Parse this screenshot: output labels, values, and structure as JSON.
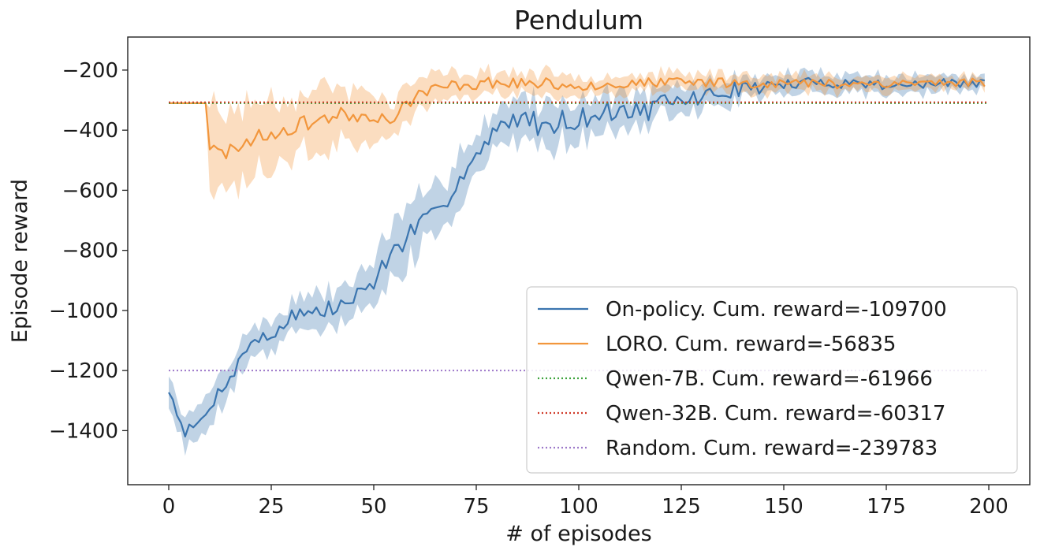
{
  "chart_data": {
    "type": "line",
    "title": "Pendulum",
    "xlabel": "# of episodes",
    "ylabel": "Episode reward",
    "xlim": [
      -10,
      210
    ],
    "ylim": [
      -1580,
      -90
    ],
    "xticks": [
      0,
      25,
      50,
      75,
      100,
      125,
      150,
      175,
      200
    ],
    "yticks": [
      -200,
      -400,
      -600,
      -800,
      -1000,
      -1200,
      -1400
    ],
    "xtick_labels": [
      "0",
      "25",
      "50",
      "75",
      "100",
      "125",
      "150",
      "175",
      "200"
    ],
    "ytick_labels": [
      "−200",
      "−400",
      "−600",
      "−800",
      "−1000",
      "−1200",
      "−1400"
    ],
    "grid": false,
    "legend_position": "lower-right",
    "series": [
      {
        "name": "On-policy. Cum. reward=-109700",
        "color": "#3b75af",
        "style": "solid",
        "band": true,
        "x_range": [
          0,
          199
        ],
        "anchors": [
          [
            0,
            -1265
          ],
          [
            4,
            -1405
          ],
          [
            8,
            -1370
          ],
          [
            12,
            -1275
          ],
          [
            16,
            -1200
          ],
          [
            20,
            -1100
          ],
          [
            25,
            -1090
          ],
          [
            30,
            -1010
          ],
          [
            35,
            -1010
          ],
          [
            40,
            -995
          ],
          [
            45,
            -965
          ],
          [
            50,
            -900
          ],
          [
            55,
            -800
          ],
          [
            60,
            -730
          ],
          [
            65,
            -690
          ],
          [
            70,
            -570
          ],
          [
            75,
            -490
          ],
          [
            80,
            -410
          ],
          [
            85,
            -350
          ],
          [
            90,
            -380
          ],
          [
            95,
            -370
          ],
          [
            100,
            -360
          ],
          [
            105,
            -350
          ],
          [
            110,
            -330
          ],
          [
            115,
            -340
          ],
          [
            120,
            -320
          ],
          [
            125,
            -300
          ],
          [
            130,
            -290
          ],
          [
            140,
            -260
          ],
          [
            150,
            -250
          ],
          [
            160,
            -240
          ],
          [
            170,
            -245
          ],
          [
            180,
            -250
          ],
          [
            190,
            -245
          ],
          [
            199,
            -245
          ]
        ],
        "noise": [
          [
            0,
            15
          ],
          [
            20,
            25
          ],
          [
            50,
            35
          ],
          [
            80,
            40
          ],
          [
            120,
            35
          ],
          [
            150,
            20
          ],
          [
            199,
            15
          ]
        ],
        "band_width": [
          [
            0,
            40
          ],
          [
            10,
            55
          ],
          [
            30,
            45
          ],
          [
            60,
            90
          ],
          [
            80,
            75
          ],
          [
            110,
            55
          ],
          [
            140,
            35
          ],
          [
            199,
            25
          ]
        ],
        "seed": 7
      },
      {
        "name": "LORO. Cum. reward=-56835",
        "color": "#f2963c",
        "style": "solid",
        "band": true,
        "x_range": [
          0,
          199
        ],
        "anchors": [
          [
            0,
            -310
          ],
          [
            9,
            -310
          ],
          [
            10,
            -460
          ],
          [
            13,
            -480
          ],
          [
            20,
            -430
          ],
          [
            30,
            -390
          ],
          [
            40,
            -350
          ],
          [
            50,
            -350
          ],
          [
            55,
            -365
          ],
          [
            58,
            -310
          ],
          [
            62,
            -270
          ],
          [
            70,
            -250
          ],
          [
            80,
            -240
          ],
          [
            100,
            -250
          ],
          [
            130,
            -240
          ],
          [
            160,
            -245
          ],
          [
            199,
            -240
          ]
        ],
        "noise": [
          [
            0,
            0
          ],
          [
            9,
            0
          ],
          [
            10,
            25
          ],
          [
            40,
            25
          ],
          [
            60,
            20
          ],
          [
            80,
            20
          ],
          [
            120,
            18
          ],
          [
            199,
            15
          ]
        ],
        "band_width": [
          [
            0,
            0
          ],
          [
            9,
            0
          ],
          [
            10,
            140
          ],
          [
            20,
            120
          ],
          [
            40,
            90
          ],
          [
            55,
            60
          ],
          [
            62,
            45
          ],
          [
            80,
            35
          ],
          [
            120,
            30
          ],
          [
            160,
            25
          ],
          [
            199,
            20
          ]
        ],
        "seed": 23
      },
      {
        "name": "Qwen-7B. Cum. reward=-61966",
        "color": "#3da33d",
        "style": "dotted",
        "band": false,
        "x_range": [
          0,
          200
        ],
        "const": -310
      },
      {
        "name": "Qwen-32B. Cum. reward=-60317",
        "color": "#d03b2a",
        "style": "dotted",
        "band": false,
        "x_range": [
          0,
          200
        ],
        "const": -307
      },
      {
        "name": "Random. Cum. reward=-239783",
        "color": "#9d78c9",
        "style": "dotted",
        "band": false,
        "x_range": [
          0,
          200
        ],
        "const": -1200
      }
    ]
  }
}
